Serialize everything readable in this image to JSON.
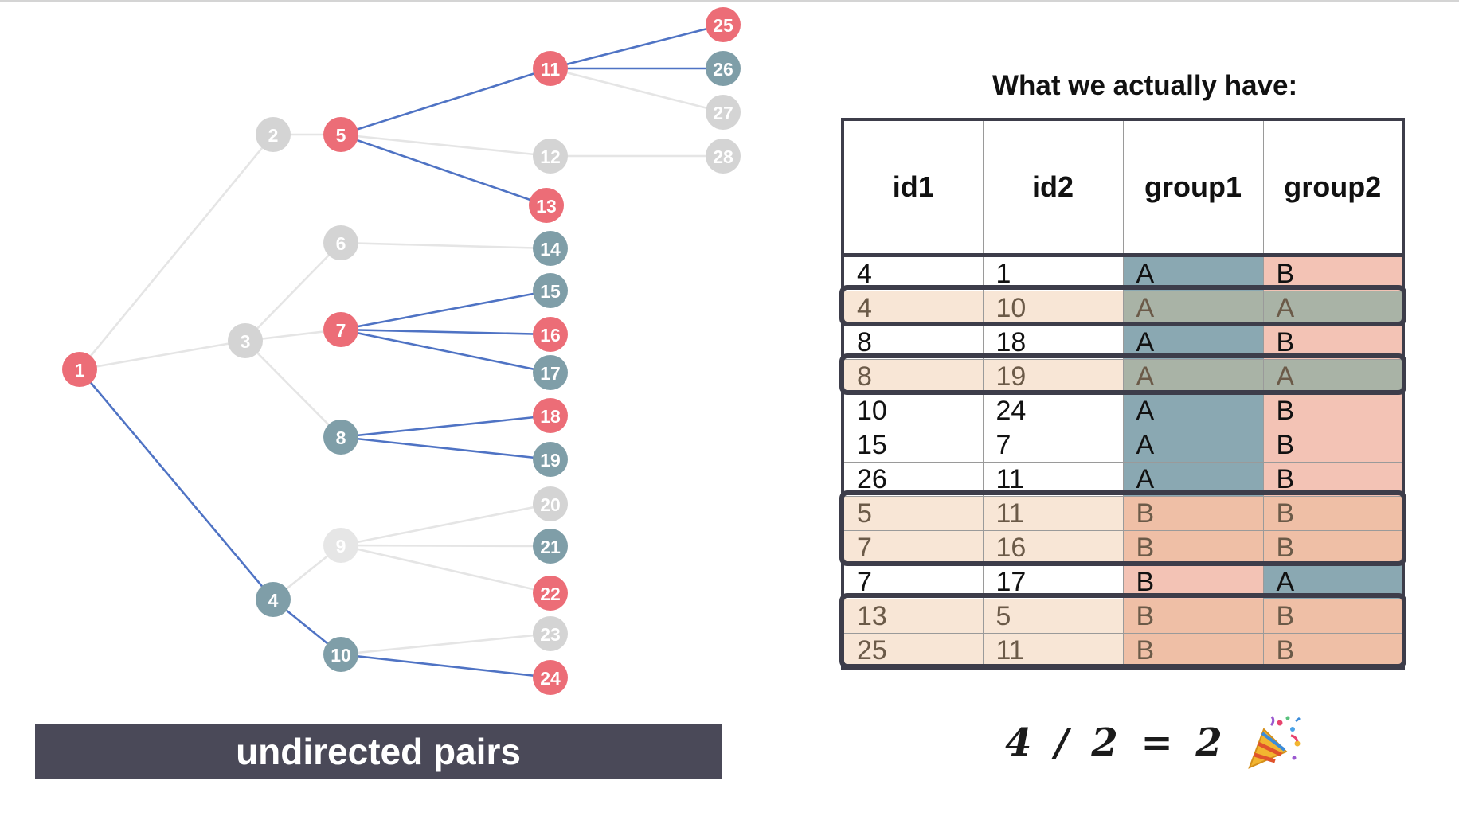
{
  "diagram": {
    "colors": {
      "red": "#ec6d77",
      "teal": "#7f9ea8",
      "gray": "#d4d4d4",
      "faint": "#e6e6e6",
      "blue_edge": "#4f73c4",
      "gray_edge": "#e5e5e5"
    },
    "nodes": [
      {
        "id": "1",
        "color": "red"
      },
      {
        "id": "2",
        "color": "gray"
      },
      {
        "id": "3",
        "color": "gray"
      },
      {
        "id": "4",
        "color": "teal"
      },
      {
        "id": "5",
        "color": "red"
      },
      {
        "id": "6",
        "color": "gray"
      },
      {
        "id": "7",
        "color": "red"
      },
      {
        "id": "8",
        "color": "teal"
      },
      {
        "id": "9",
        "color": "faint"
      },
      {
        "id": "10",
        "color": "teal"
      },
      {
        "id": "11",
        "color": "red"
      },
      {
        "id": "12",
        "color": "gray"
      },
      {
        "id": "13",
        "color": "red"
      },
      {
        "id": "14",
        "color": "teal"
      },
      {
        "id": "15",
        "color": "teal"
      },
      {
        "id": "16",
        "color": "red"
      },
      {
        "id": "17",
        "color": "teal"
      },
      {
        "id": "18",
        "color": "red"
      },
      {
        "id": "19",
        "color": "teal"
      },
      {
        "id": "20",
        "color": "gray"
      },
      {
        "id": "21",
        "color": "teal"
      },
      {
        "id": "22",
        "color": "red"
      },
      {
        "id": "23",
        "color": "gray"
      },
      {
        "id": "24",
        "color": "red"
      },
      {
        "id": "25",
        "color": "red"
      },
      {
        "id": "26",
        "color": "teal"
      },
      {
        "id": "27",
        "color": "gray"
      },
      {
        "id": "28",
        "color": "gray"
      }
    ],
    "edges": [
      {
        "from": "1",
        "to": "2",
        "highlight": false
      },
      {
        "from": "1",
        "to": "3",
        "highlight": false
      },
      {
        "from": "1",
        "to": "4",
        "highlight": true
      },
      {
        "from": "2",
        "to": "5",
        "highlight": false
      },
      {
        "from": "3",
        "to": "6",
        "highlight": false
      },
      {
        "from": "3",
        "to": "7",
        "highlight": false
      },
      {
        "from": "3",
        "to": "8",
        "highlight": false
      },
      {
        "from": "4",
        "to": "9",
        "highlight": false
      },
      {
        "from": "4",
        "to": "10",
        "highlight": true
      },
      {
        "from": "5",
        "to": "11",
        "highlight": true
      },
      {
        "from": "5",
        "to": "12",
        "highlight": false
      },
      {
        "from": "5",
        "to": "13",
        "highlight": true
      },
      {
        "from": "6",
        "to": "14",
        "highlight": false
      },
      {
        "from": "7",
        "to": "15",
        "highlight": true
      },
      {
        "from": "7",
        "to": "16",
        "highlight": true
      },
      {
        "from": "7",
        "to": "17",
        "highlight": true
      },
      {
        "from": "8",
        "to": "18",
        "highlight": true
      },
      {
        "from": "8",
        "to": "19",
        "highlight": true
      },
      {
        "from": "9",
        "to": "20",
        "highlight": false
      },
      {
        "from": "9",
        "to": "21",
        "highlight": false
      },
      {
        "from": "9",
        "to": "22",
        "highlight": false
      },
      {
        "from": "10",
        "to": "23",
        "highlight": false
      },
      {
        "from": "10",
        "to": "24",
        "highlight": true
      },
      {
        "from": "11",
        "to": "25",
        "highlight": true
      },
      {
        "from": "11",
        "to": "26",
        "highlight": true
      },
      {
        "from": "11",
        "to": "27",
        "highlight": false
      },
      {
        "from": "12",
        "to": "28",
        "highlight": false
      }
    ]
  },
  "caption": "undirected pairs",
  "table": {
    "title": "What we actually have:",
    "headers": [
      "id1",
      "id2",
      "group1",
      "group2"
    ],
    "colors": {
      "teal_cell": "#8aa8b2",
      "pink_cell": "#f3c3b5",
      "row_tint": "#f8e6d6",
      "hl_teal": "#a9b3a6",
      "hl_pink": "#efbfa6"
    },
    "rows": [
      [
        "4",
        "1",
        "A",
        "B"
      ],
      [
        "4",
        "10",
        "A",
        "A"
      ],
      [
        "8",
        "18",
        "A",
        "B"
      ],
      [
        "8",
        "19",
        "A",
        "A"
      ],
      [
        "10",
        "24",
        "A",
        "B"
      ],
      [
        "15",
        "7",
        "A",
        "B"
      ],
      [
        "26",
        "11",
        "A",
        "B"
      ],
      [
        "5",
        "11",
        "B",
        "B"
      ],
      [
        "7",
        "16",
        "B",
        "B"
      ],
      [
        "7",
        "17",
        "B",
        "A"
      ],
      [
        "13",
        "5",
        "B",
        "B"
      ],
      [
        "25",
        "11",
        "B",
        "B"
      ]
    ],
    "highlighted_rows": [
      1,
      3,
      7,
      8,
      10,
      11
    ],
    "highlight_groups": [
      [
        1
      ],
      [
        3
      ],
      [
        7,
        8
      ],
      [
        10,
        11
      ]
    ]
  },
  "result": {
    "formula": "4 / 2 = 2",
    "emoji_name": "party-popper-icon"
  }
}
